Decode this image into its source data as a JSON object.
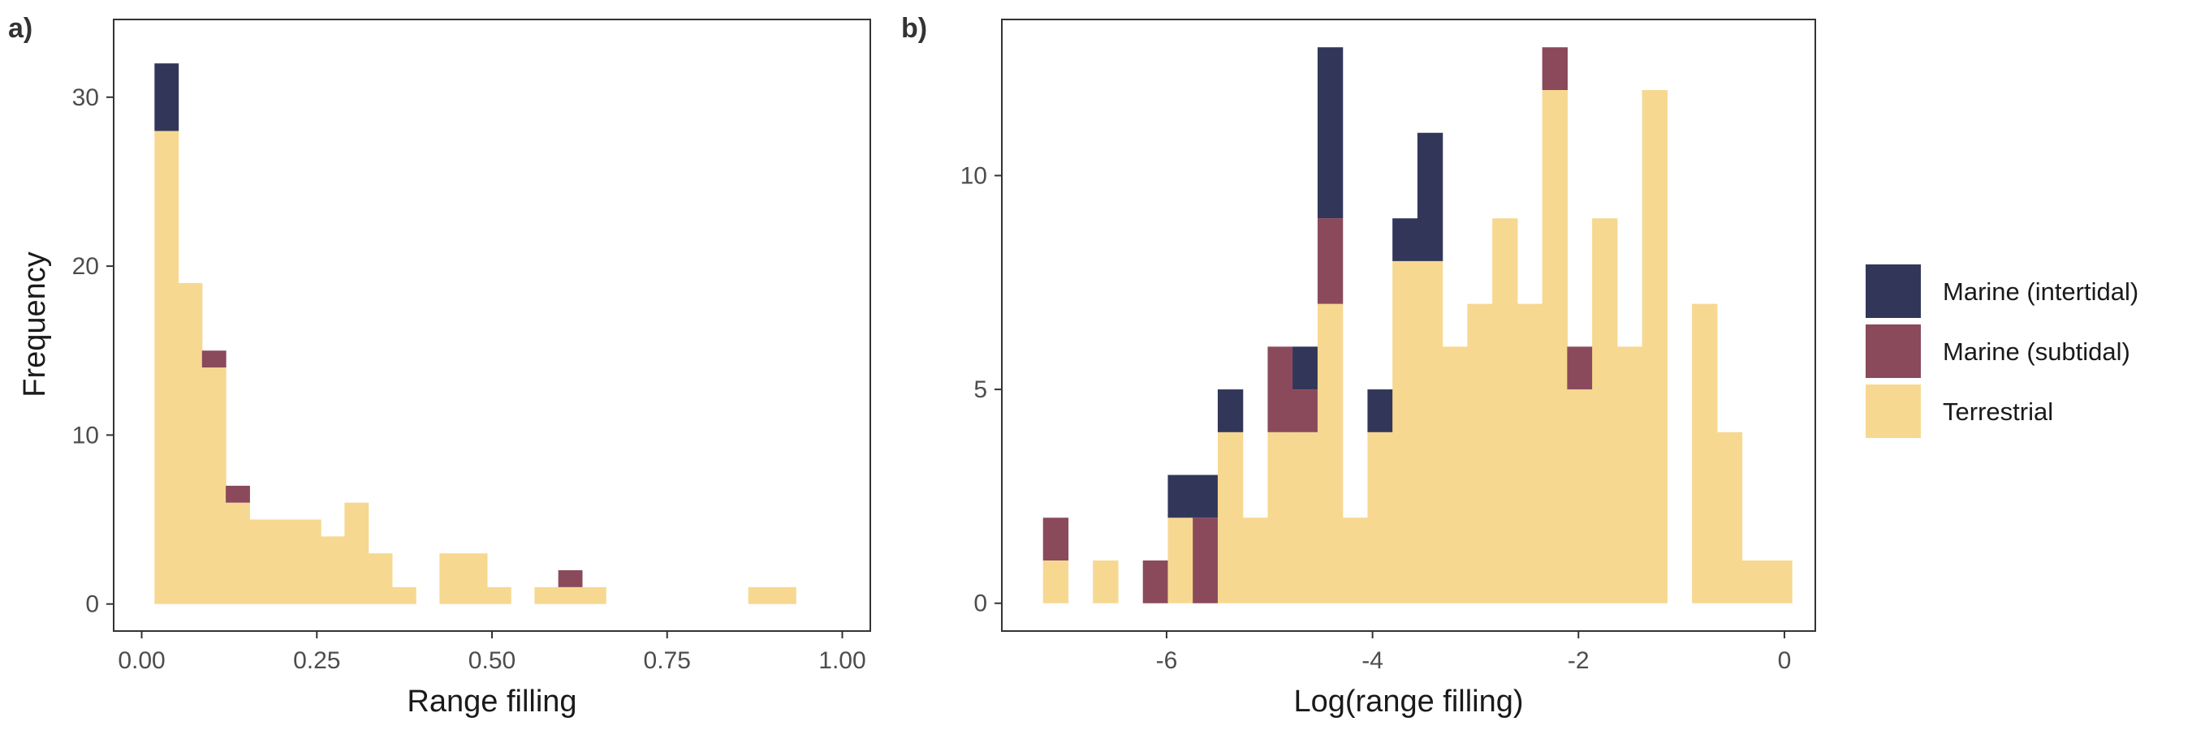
{
  "colors": {
    "marine_intertidal": "#32375a",
    "marine_subtidal": "#8a4a5c",
    "terrestrial": "#f7d891",
    "frame": "#333333",
    "tick_text": "#4d4d4d"
  },
  "legend": {
    "items": [
      {
        "key": "marine_intertidal",
        "label": "Marine (intertidal)"
      },
      {
        "key": "marine_subtidal",
        "label": "Marine (subtidal)"
      },
      {
        "key": "terrestrial",
        "label": "Terrestrial"
      }
    ]
  },
  "chart_data": [
    {
      "type": "bar",
      "subtype": "stacked-histogram",
      "panel_label": "a)",
      "xlabel": "Range filling",
      "ylabel": "Frequency",
      "xlim": [
        -0.04,
        1.04
      ],
      "ylim": [
        -1.6,
        34.6
      ],
      "xticks": [
        {
          "value": 0,
          "label": "0.00"
        },
        {
          "value": 0.25,
          "label": "0.25"
        },
        {
          "value": 0.5,
          "label": "0.50"
        },
        {
          "value": 0.75,
          "label": "0.75"
        },
        {
          "value": 1,
          "label": "1.00"
        }
      ],
      "yticks": [
        {
          "value": 0,
          "label": "0"
        },
        {
          "value": 10,
          "label": "10"
        },
        {
          "value": 20,
          "label": "20"
        },
        {
          "value": 30,
          "label": "30"
        }
      ],
      "bin_start": 0.0183,
      "bin_width": 0.0339,
      "series": [
        {
          "name": "Terrestrial",
          "key": "terrestrial",
          "values": [
            28,
            19,
            14,
            6,
            5,
            5,
            5,
            4,
            6,
            3,
            1,
            0,
            3,
            3,
            1,
            0,
            1,
            1,
            1,
            0,
            0,
            0,
            0,
            0,
            0,
            1,
            1
          ]
        },
        {
          "name": "Marine (subtidal)",
          "key": "marine_subtidal",
          "values": [
            0,
            0,
            1,
            1,
            0,
            0,
            0,
            0,
            0,
            0,
            0,
            0,
            0,
            0,
            0,
            0,
            0,
            1,
            0,
            0,
            0,
            0,
            0,
            0,
            0,
            0,
            0
          ]
        },
        {
          "name": "Marine (intertidal)",
          "key": "marine_intertidal",
          "values": [
            4,
            0,
            0,
            0,
            0,
            0,
            0,
            0,
            0,
            0,
            0,
            0,
            0,
            0,
            0,
            0,
            0,
            0,
            0,
            0,
            0,
            0,
            0,
            0,
            0,
            0,
            0
          ]
        }
      ]
    },
    {
      "type": "bar",
      "subtype": "stacked-histogram",
      "panel_label": "b)",
      "xlabel": "Log(range filling)",
      "ylabel": "",
      "xlim": [
        -7.6,
        0.3
      ],
      "ylim": [
        -0.65,
        13.65
      ],
      "xticks": [
        {
          "value": -6,
          "label": "-6"
        },
        {
          "value": -4,
          "label": "-4"
        },
        {
          "value": -2,
          "label": "-2"
        },
        {
          "value": 0,
          "label": "0"
        }
      ],
      "yticks": [
        {
          "value": 0,
          "label": "0"
        },
        {
          "value": 5,
          "label": "5"
        },
        {
          "value": 10,
          "label": "10"
        }
      ],
      "bin_start": -7.2,
      "bin_width": 0.2424,
      "series": [
        {
          "name": "Terrestrial",
          "key": "terrestrial",
          "values": [
            1,
            0,
            1,
            0,
            0,
            2,
            0,
            4,
            2,
            4,
            4,
            7,
            2,
            4,
            8,
            8,
            6,
            7,
            9,
            7,
            12,
            5,
            9,
            6,
            12,
            0,
            7,
            4,
            1,
            1
          ]
        },
        {
          "name": "Marine (subtidal)",
          "key": "marine_subtidal",
          "values": [
            1,
            0,
            0,
            0,
            1,
            0,
            2,
            0,
            0,
            2,
            1,
            2,
            0,
            0,
            0,
            0,
            0,
            0,
            0,
            0,
            1,
            1,
            0,
            0,
            0,
            0,
            0,
            0,
            0,
            0
          ]
        },
        {
          "name": "Marine (intertidal)",
          "key": "marine_intertidal",
          "values": [
            0,
            0,
            0,
            0,
            0,
            1,
            1,
            1,
            0,
            0,
            1,
            4,
            0,
            1,
            1,
            3,
            0,
            0,
            0,
            0,
            0,
            0,
            0,
            0,
            0,
            0,
            0,
            0,
            0,
            0
          ]
        }
      ]
    }
  ]
}
